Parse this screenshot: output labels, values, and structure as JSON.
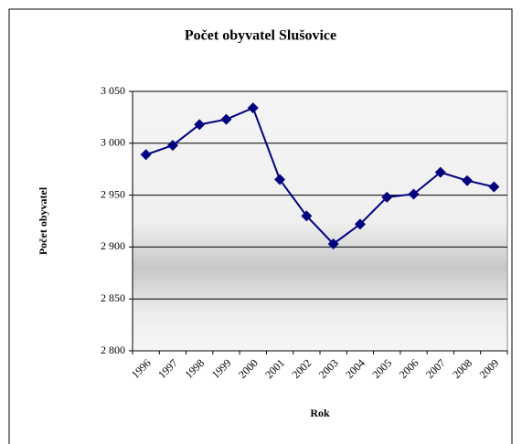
{
  "chart_data": {
    "type": "line",
    "title": "Počet obyvatel Slušovice",
    "x_label": "Rok",
    "y_label": "Počet obyvatel",
    "categories": [
      "1996",
      "1997",
      "1998",
      "1999",
      "2000",
      "2001",
      "2002",
      "2003",
      "2004",
      "2005",
      "2006",
      "2007",
      "2008",
      "2009"
    ],
    "series": [
      {
        "name": "Počet obyvatel",
        "color": "#000080",
        "values": [
          2989,
          2998,
          3018,
          3023,
          3034,
          2965,
          2930,
          2903,
          2922,
          2948,
          2951,
          2972,
          2964,
          2958
        ]
      }
    ],
    "ylim": [
      2800,
      3050
    ],
    "yticks": [
      {
        "value": 2800,
        "label": "2 800"
      },
      {
        "value": 2850,
        "label": "2 850"
      },
      {
        "value": 2900,
        "label": "2 900"
      },
      {
        "value": 2950,
        "label": "2 950"
      },
      {
        "value": 3000,
        "label": "3 000"
      },
      {
        "value": 3050,
        "label": "3 050"
      }
    ],
    "grid": true
  }
}
